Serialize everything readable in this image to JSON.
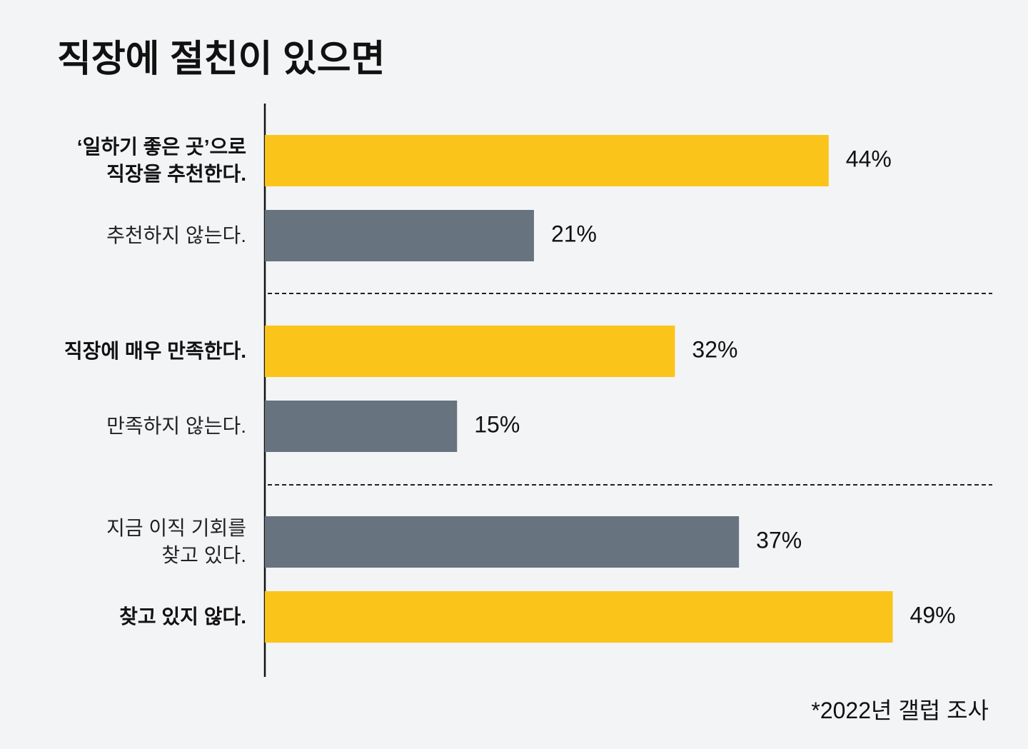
{
  "chart_data": {
    "type": "bar",
    "orientation": "horizontal",
    "title": "직장에 절친이 있으면",
    "categories": [
      "‘일하기 좋은 곳’으로\n직장을 추천한다.",
      "추천하지 않는다.",
      "직장에 매우 만족한다.",
      "만족하지 않는다.",
      "지금 이직 기회를\n찾고 있다.",
      "찾고 있지 않다."
    ],
    "values": [
      44,
      21,
      32,
      15,
      37,
      49
    ],
    "value_labels": [
      "44%",
      "21%",
      "32%",
      "15%",
      "37%",
      "49%"
    ],
    "colors": [
      "#fbc41a",
      "#67737f",
      "#fbc41a",
      "#67737f",
      "#67737f",
      "#fbc41a"
    ],
    "note": "*2022년 갤럽 조사"
  }
}
